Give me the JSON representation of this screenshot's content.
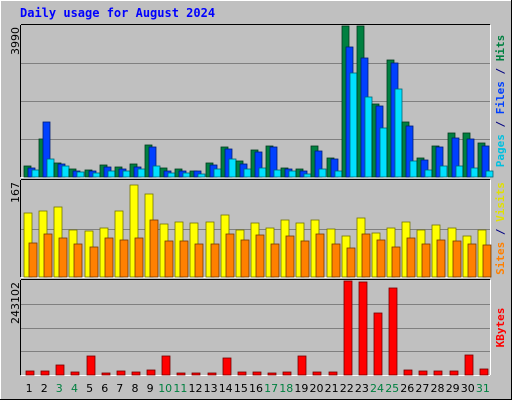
{
  "chart_data": {
    "type": "bar",
    "title": "Daily usage for August 2024",
    "days": [
      "1",
      "2",
      "3",
      "4",
      "5",
      "6",
      "7",
      "8",
      "9",
      "10",
      "11",
      "12",
      "13",
      "14",
      "15",
      "16",
      "17",
      "18",
      "19",
      "20",
      "21",
      "22",
      "23",
      "24",
      "25",
      "26",
      "27",
      "28",
      "29",
      "30",
      "31"
    ],
    "weekend_days": [
      "3",
      "4",
      "10",
      "11",
      "17",
      "18",
      "24",
      "25",
      "31"
    ],
    "panels": [
      {
        "id": "hits",
        "ymax_label": "3990",
        "ymax": 3990,
        "series": [
          {
            "name": "Hits",
            "color": "#008040",
            "values": [
              300,
              1000,
              380,
              200,
              190,
              320,
              260,
              350,
              850,
              230,
              220,
              170,
              380,
              800,
              420,
              720,
              830,
              250,
              200,
              810,
              500,
              3990,
              3990,
              1930,
              3100,
              1460,
              500,
              830,
              1150,
              1150,
              910
            ]
          },
          {
            "name": "Files",
            "color": "#0040ff",
            "values": [
              250,
              1450,
              340,
              170,
              160,
              260,
              210,
              260,
              800,
              170,
              170,
              150,
              320,
              750,
              340,
              650,
              780,
              200,
              150,
              700,
              470,
              3430,
              3150,
              1870,
              3000,
              1350,
              460,
              780,
              1030,
              1000,
              810
            ]
          },
          {
            "name": "Pages",
            "color": "#00e0ff",
            "values": [
              180,
              480,
              280,
              120,
              100,
              160,
              150,
              200,
              300,
              110,
              110,
              90,
              200,
              480,
              200,
              230,
              190,
              150,
              90,
              220,
              150,
              2750,
              2120,
              1300,
              2330,
              430,
              190,
              300,
              300,
              250,
              160
            ]
          }
        ]
      },
      {
        "id": "visits",
        "ymax_label": "167",
        "ymax": 167,
        "series": [
          {
            "name": "Visits",
            "color": "#ffff00",
            "values": [
              112,
              115,
              121,
              82,
              80,
              86,
              115,
              160,
              144,
              92,
              96,
              94,
              96,
              107,
              82,
              94,
              86,
              100,
              94,
              100,
              84,
              72,
              102,
              76,
              85,
              96,
              82,
              90,
              85,
              71,
              82
            ]
          },
          {
            "name": "Sites",
            "color": "#ff8000",
            "values": [
              59,
              75,
              68,
              57,
              52,
              68,
              64,
              68,
              100,
              62,
              62,
              58,
              58,
              75,
              64,
              73,
              58,
              72,
              63,
              74,
              58,
              50,
              74,
              65,
              52,
              68,
              58,
              65,
              63,
              57,
              56
            ]
          }
        ]
      },
      {
        "id": "kbytes",
        "ymax_label": "243102",
        "ymax": 243102,
        "series": [
          {
            "name": "KBytes",
            "color": "#ff0000",
            "values": [
              10000,
              11000,
              25000,
              9000,
              50000,
              5000,
              10000,
              9000,
              12000,
              50000,
              6000,
              5000,
              6000,
              45000,
              8000,
              7000,
              6000,
              9000,
              50000,
              8000,
              8000,
              243102,
              241000,
              160000,
              225000,
              13000,
              10000,
              10000,
              10000,
              52000,
              16000
            ]
          }
        ]
      }
    ],
    "right_labels": [
      {
        "parts": [
          {
            "text": "Pages",
            "color": "#00c0e0"
          },
          {
            "text": " / ",
            "color": "#000080"
          },
          {
            "text": "Files",
            "color": "#0040ff"
          },
          {
            "text": " / ",
            "color": "#000080"
          },
          {
            "text": "Hits",
            "color": "#008040"
          }
        ]
      },
      {
        "parts": [
          {
            "text": "Sites",
            "color": "#ff8000"
          },
          {
            "text": " / ",
            "color": "#000080"
          },
          {
            "text": "Visits",
            "color": "#e0e000"
          }
        ]
      },
      {
        "parts": [
          {
            "text": "KBytes",
            "color": "#ff0000"
          }
        ]
      }
    ]
  }
}
